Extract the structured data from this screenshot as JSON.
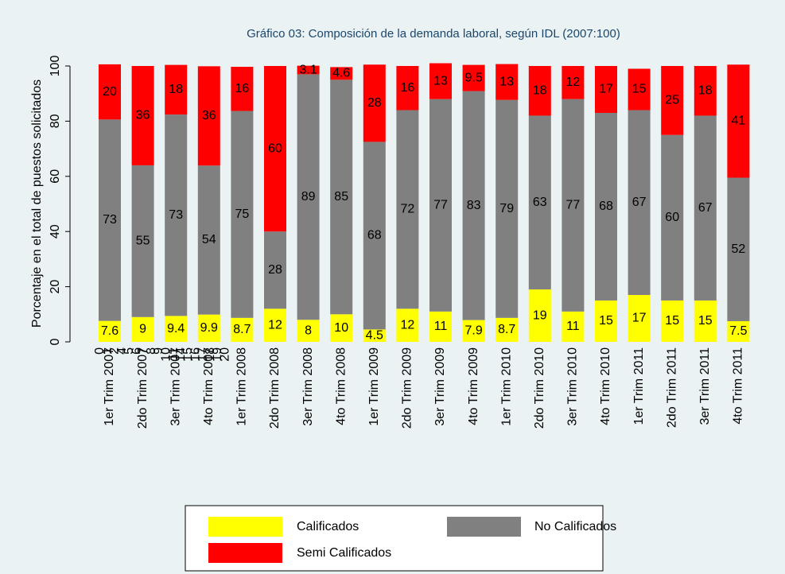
{
  "chart_data": {
    "type": "stacked_bar",
    "title": "Gráfico 03: Composición de la demanda laboral, según IDL (2007:100)",
    "y_label": "Porcentaje en el total de puestos solicitados",
    "categories": [
      "1er Trim 2007",
      "2do Trim 2007",
      "3er Trim 2007",
      "4to Trim 2007",
      "1er Trim 2008",
      "2do Trim 2008",
      "3er Trim 2008",
      "4to Trim 2008",
      "1er Trim 2009",
      "2do Trim 2009",
      "3er Trim 2009",
      "4to Trim 2009",
      "1er Trim 2010",
      "2do Trim 2010",
      "3er Trim 2010",
      "4to Trim 2010",
      "1er Trim 2011",
      "2do Trim 2011",
      "3er Trim 2011",
      "4to Trim 2011"
    ],
    "x_overlay_labels": [
      0,
      1,
      2,
      4,
      5,
      6,
      7,
      8,
      9,
      10,
      11,
      14,
      15,
      16,
      17,
      18,
      19,
      20
    ],
    "series": [
      {
        "name": "Calificados",
        "color": "#ffff00",
        "values": [
          7.6,
          9,
          9.4,
          9.9,
          8.7,
          12,
          8,
          10,
          4.5,
          12,
          11,
          7.9,
          8.7,
          19,
          11,
          15,
          17,
          15,
          15,
          7.5
        ]
      },
      {
        "name": "No Calificados",
        "color": "#808080",
        "values": [
          73,
          55,
          73,
          54,
          75,
          28,
          89,
          85,
          68,
          72,
          77,
          83,
          79,
          63,
          77,
          68,
          67,
          60,
          67,
          52
        ]
      },
      {
        "name": "Semi Calificados",
        "color": "#ff0000",
        "values": [
          20,
          36,
          18,
          36,
          16,
          60,
          3.1,
          4.6,
          28,
          16,
          13,
          9.5,
          13,
          18,
          12,
          17,
          15,
          25,
          18,
          41
        ]
      }
    ],
    "ylim": [
      0,
      100
    ],
    "yticks": [
      0,
      20,
      40,
      60,
      80,
      100
    ],
    "grid": false
  }
}
